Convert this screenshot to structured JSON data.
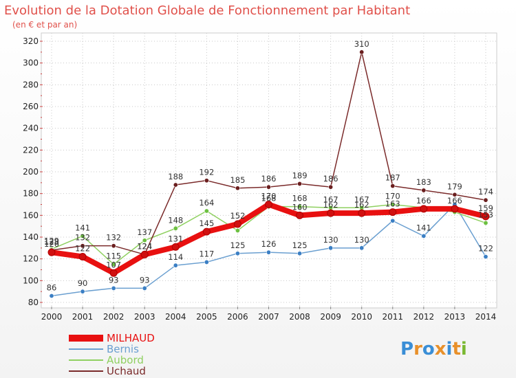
{
  "chart_data": {
    "type": "line",
    "title": "Evolution de la Dotation Globale de Fonctionnement par Habitant",
    "subtitle": "(en € et par an)",
    "xlabel": "",
    "ylabel": "",
    "ylim": [
      80,
      320
    ],
    "yticks": [
      80,
      100,
      120,
      140,
      160,
      180,
      200,
      220,
      240,
      260,
      280,
      300,
      320
    ],
    "categories": [
      "2000",
      "2001",
      "2002",
      "2003",
      "2004",
      "2005",
      "2006",
      "2007",
      "2008",
      "2009",
      "2010",
      "2011",
      "2012",
      "2013",
      "2014"
    ],
    "legend_position": "bottom-left",
    "series": [
      {
        "name": "MILHAUD",
        "color": "#e81010",
        "width": 8,
        "marker_color": "#d01010",
        "values": [
          126,
          122,
          107,
          124,
          131,
          145,
          152,
          170,
          160,
          162,
          162,
          163,
          166,
          166,
          159
        ],
        "labels": [
          "126",
          "122",
          "107",
          "124",
          "131",
          "145",
          "152",
          "170",
          "160",
          "162",
          "162",
          "163",
          "166",
          "166",
          "159"
        ]
      },
      {
        "name": "Bernis",
        "color": "#6a9fd0",
        "width": 1.5,
        "marker_color": "#3b7fc4",
        "values": [
          86,
          90,
          93,
          93,
          114,
          117,
          125,
          126,
          125,
          130,
          130,
          155,
          141,
          170,
          122
        ],
        "labels": [
          "86",
          "90",
          "93",
          "93",
          "114",
          "117",
          "125",
          "126",
          "125",
          "130",
          "130",
          "",
          "141",
          "",
          "122"
        ]
      },
      {
        "name": "Aubord",
        "color": "#8fd060",
        "width": 1.5,
        "marker_color": "#6cc040",
        "values": [
          129,
          141,
          115,
          137,
          148,
          164,
          146,
          168,
          168,
          167,
          167,
          170,
          167,
          163,
          153
        ],
        "labels": [
          "129",
          "141",
          "115",
          "137",
          "148",
          "164",
          "",
          "168",
          "168",
          "167",
          "167",
          "170",
          "",
          "",
          "153"
        ]
      },
      {
        "name": "Uchaud",
        "color": "#7a2a2a",
        "width": 1.5,
        "marker_color": "#6b1f1f",
        "values": [
          128,
          132,
          132,
          124,
          188,
          192,
          185,
          186,
          189,
          186,
          310,
          187,
          183,
          179,
          174
        ],
        "labels": [
          "128",
          "132",
          "132",
          "124",
          "188",
          "192",
          "185",
          "186",
          "189",
          "186",
          "310",
          "187",
          "183",
          "179",
          "174"
        ]
      }
    ]
  },
  "branding": {
    "logo_text": "Proxiti"
  }
}
